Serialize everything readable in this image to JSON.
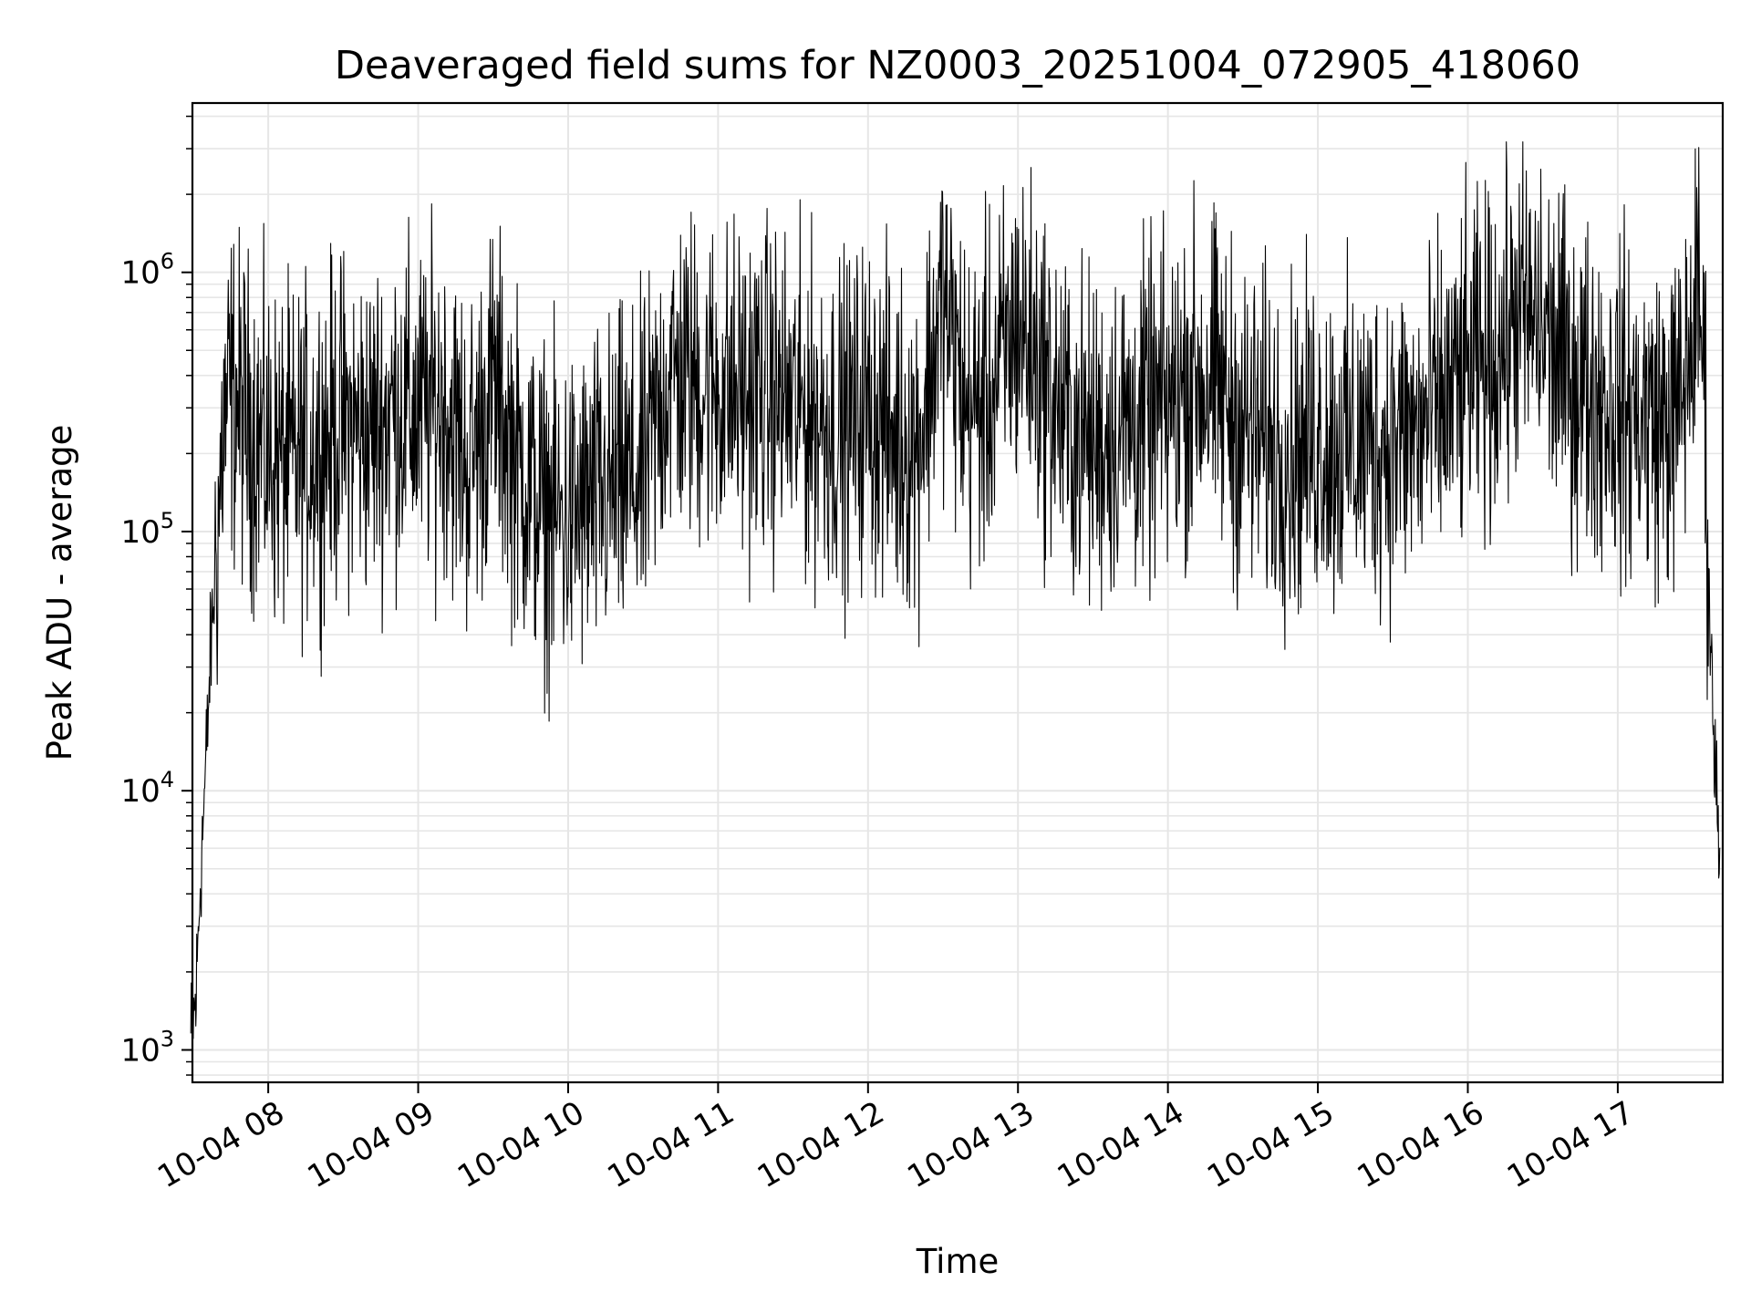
{
  "chart_data": {
    "type": "line",
    "title": "Deaveraged field sums for NZ0003_20251004_072905_418060",
    "xlabel": "Time",
    "ylabel": "Peak ADU - average",
    "yscale": "log",
    "xlim": [
      "10-04 07:29:40",
      "10-04 17:42:00"
    ],
    "ylim": [
      750,
      4500000
    ],
    "grid": true,
    "line_color": "#000000",
    "grid_color": "#e6e6e6",
    "x_ticks": [
      "10-04 08",
      "10-04 09",
      "10-04 10",
      "10-04 11",
      "10-04 12",
      "10-04 13",
      "10-04 14",
      "10-04 15",
      "10-04 16",
      "10-04 17"
    ],
    "y_ticks": [
      {
        "base": "10",
        "exp": "3",
        "value": 1000
      },
      {
        "base": "10",
        "exp": "4",
        "value": 10000
      },
      {
        "base": "10",
        "exp": "5",
        "value": 100000
      },
      {
        "base": "10",
        "exp": "6",
        "value": 1000000
      }
    ],
    "series": [
      {
        "x": [
          "10-04 07:29",
          "10-04 07:31",
          "10-04 07:33",
          "10-04 07:35",
          "10-04 07:37",
          "10-04 07:40",
          "10-04 07:42",
          "10-04 07:45",
          "10-04 07:50",
          "10-04 07:55",
          "10-04 08:00",
          "10-04 08:10",
          "10-04 08:20",
          "10-04 08:30",
          "10-04 08:40",
          "10-04 08:50",
          "10-04 09:00",
          "10-04 09:10",
          "10-04 09:20",
          "10-04 09:30",
          "10-04 09:40",
          "10-04 09:50",
          "10-04 10:00",
          "10-04 10:10",
          "10-04 10:20",
          "10-04 10:30",
          "10-04 10:40",
          "10-04 10:50",
          "10-04 11:00",
          "10-04 11:10",
          "10-04 11:20",
          "10-04 11:30",
          "10-04 11:40",
          "10-04 11:50",
          "10-04 12:00",
          "10-04 12:10",
          "10-04 12:20",
          "10-04 12:30",
          "10-04 12:40",
          "10-04 12:50",
          "10-04 13:00",
          "10-04 13:10",
          "10-04 13:20",
          "10-04 13:30",
          "10-04 13:40",
          "10-04 13:50",
          "10-04 14:00",
          "10-04 14:10",
          "10-04 14:20",
          "10-04 14:30",
          "10-04 14:40",
          "10-04 14:50",
          "10-04 15:00",
          "10-04 15:10",
          "10-04 15:20",
          "10-04 15:30",
          "10-04 15:40",
          "10-04 15:50",
          "10-04 16:00",
          "10-04 16:10",
          "10-04 16:20",
          "10-04 16:30",
          "10-04 16:40",
          "10-04 16:50",
          "10-04 17:00",
          "10-04 17:10",
          "10-04 17:20",
          "10-04 17:25",
          "10-04 17:30",
          "10-04 17:33",
          "10-04 17:35",
          "10-04 17:37",
          "10-04 17:39",
          "10-04 17:41"
        ],
        "values": [
          1100,
          1500,
          5000,
          12000,
          35000,
          110000,
          250000,
          350000,
          280000,
          240000,
          200000,
          180000,
          220000,
          260000,
          240000,
          300000,
          280000,
          320000,
          180000,
          350000,
          180000,
          120000,
          110000,
          130000,
          150000,
          160000,
          400000,
          380000,
          360000,
          340000,
          350000,
          300000,
          280000,
          250000,
          300000,
          230000,
          220000,
          800000,
          280000,
          350000,
          650000,
          400000,
          250000,
          220000,
          250000,
          270000,
          300000,
          400000,
          350000,
          250000,
          220000,
          200000,
          230000,
          210000,
          220000,
          230000,
          240000,
          300000,
          400000,
          450000,
          700000,
          600000,
          400000,
          350000,
          300000,
          280000,
          260000,
          300000,
          600000,
          800000,
          300000,
          40000,
          12000,
          6000
        ]
      }
    ]
  }
}
